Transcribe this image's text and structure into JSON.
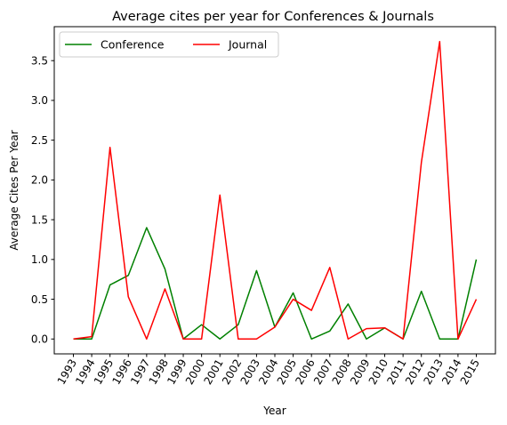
{
  "chart_data": {
    "type": "line",
    "title": "Average cites per year for Conferences & Journals",
    "xlabel": "Year",
    "ylabel": "Average Cites Per Year",
    "categories": [
      "1993",
      "1994",
      "1995",
      "1996",
      "1997",
      "1998",
      "1999",
      "2000",
      "2001",
      "2002",
      "2003",
      "2004",
      "2005",
      "2006",
      "2007",
      "2008",
      "2009",
      "2010",
      "2011",
      "2012",
      "2013",
      "2014",
      "2015"
    ],
    "series": [
      {
        "name": "Conference",
        "color": "#008000",
        "values": [
          0.0,
          0.0,
          0.68,
          0.8,
          1.4,
          0.88,
          0.0,
          0.18,
          0.0,
          0.18,
          0.86,
          0.15,
          0.58,
          0.0,
          0.1,
          0.44,
          0.0,
          0.14,
          0.0,
          0.6,
          0.0,
          0.0,
          1.0
        ]
      },
      {
        "name": "Journal",
        "color": "#ff0000",
        "values": [
          0.0,
          0.03,
          2.41,
          0.53,
          0.0,
          0.63,
          0.0,
          0.0,
          1.81,
          0.0,
          0.0,
          0.15,
          0.5,
          0.36,
          0.9,
          0.0,
          0.13,
          0.14,
          0.0,
          2.22,
          3.74,
          0.0,
          0.5
        ]
      }
    ],
    "yticks": [
      0.0,
      0.5,
      1.0,
      1.5,
      2.0,
      2.5,
      3.0,
      3.5
    ],
    "ytick_labels": [
      "0.0",
      "0.5",
      "1.0",
      "1.5",
      "2.0",
      "2.5",
      "3.0",
      "3.5"
    ],
    "ylim": [
      -0.187,
      3.927
    ],
    "legend_position": "top-left",
    "grid": false
  }
}
